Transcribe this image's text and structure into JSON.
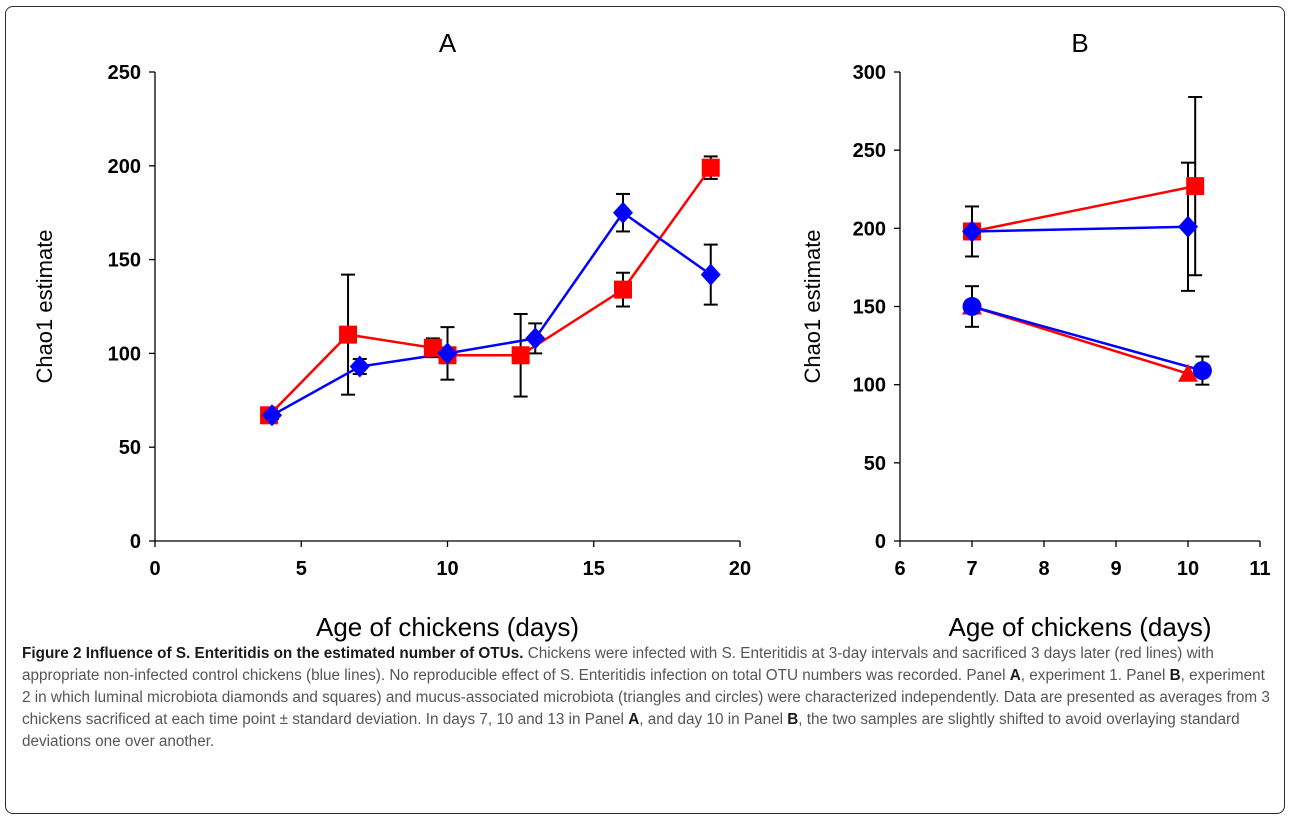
{
  "chart_data": [
    {
      "type": "line",
      "title": "A",
      "xlabel": "Age of chickens (days)",
      "ylabel": "Chao1 estimate",
      "xlim": [
        0,
        20
      ],
      "ylim": [
        0,
        250
      ],
      "xticks": [
        0,
        5,
        10,
        15,
        20
      ],
      "yticks": [
        0,
        50,
        100,
        150,
        200,
        250
      ],
      "grid": false,
      "series": [
        {
          "color": "#ff0000",
          "marker": "square",
          "points": [
            {
              "x": 3.9,
              "y": 67,
              "err": 2
            },
            {
              "x": 6.6,
              "y": 110,
              "err": 32
            },
            {
              "x": 9.5,
              "y": 103,
              "err": 5
            },
            {
              "x": 10.0,
              "y": 99,
              "err": 0
            },
            {
              "x": 12.5,
              "y": 99,
              "err": 22
            },
            {
              "x": 16.0,
              "y": 134,
              "err": 9
            },
            {
              "x": 19.0,
              "y": 199,
              "err": 6
            }
          ]
        },
        {
          "color": "#0000ff",
          "marker": "diamond",
          "points": [
            {
              "x": 4.0,
              "y": 67,
              "err": 2
            },
            {
              "x": 7.0,
              "y": 93,
              "err": 4
            },
            {
              "x": 10.0,
              "y": 100,
              "err": 14
            },
            {
              "x": 13.0,
              "y": 108,
              "err": 8
            },
            {
              "x": 16.0,
              "y": 175,
              "err": 10
            },
            {
              "x": 19.0,
              "y": 142,
              "err": 16
            }
          ]
        }
      ]
    },
    {
      "type": "line",
      "title": "B",
      "xlabel": "Age of chickens (days)",
      "ylabel": "Chao1 estimate",
      "xlim": [
        6,
        11
      ],
      "ylim": [
        0,
        300
      ],
      "xticks": [
        6,
        7,
        8,
        9,
        10,
        11
      ],
      "yticks": [
        0,
        50,
        100,
        150,
        200,
        250,
        300
      ],
      "grid": false,
      "series": [
        {
          "color": "#ff0000",
          "marker": "square",
          "points": [
            {
              "x": 7.0,
              "y": 198,
              "err": 16
            },
            {
              "x": 10.1,
              "y": 227,
              "err": 57
            }
          ]
        },
        {
          "color": "#0000ff",
          "marker": "diamond",
          "points": [
            {
              "x": 7.0,
              "y": 198,
              "err": 0
            },
            {
              "x": 10.0,
              "y": 201,
              "err": 41
            }
          ]
        },
        {
          "color": "#ff0000",
          "marker": "triangle",
          "points": [
            {
              "x": 7.0,
              "y": 150,
              "err": 0
            },
            {
              "x": 10.0,
              "y": 107,
              "err": 0
            }
          ]
        },
        {
          "color": "#0000ff",
          "marker": "circle",
          "points": [
            {
              "x": 7.0,
              "y": 150,
              "err": 13
            },
            {
              "x": 10.2,
              "y": 109,
              "err": 9
            }
          ]
        }
      ]
    }
  ],
  "caption": {
    "title": "Figure 2 Influence of S. Enteritidis on the estimated number of OTUs.",
    "body": [
      {
        "t": " Chickens were infected with S. Enteritidis at 3-day intervals and sacrificed 3 days later (red lines) with appropriate non-infected control chickens (blue lines). No reproducible effect of S. Enteritidis infection on total OTU numbers was recorded. Panel ",
        "b": false
      },
      {
        "t": "A",
        "b": true
      },
      {
        "t": ", experiment 1. Panel ",
        "b": false
      },
      {
        "t": "B",
        "b": true
      },
      {
        "t": ", experiment 2 in which luminal microbiota diamonds and squares) and mucus-associated microbiota (triangles and circles) were characterized independently. Data are presented as averages from 3 chickens sacrificed at each time point ± standard deviation. In days 7, 10 and 13 in Panel ",
        "b": false
      },
      {
        "t": "A",
        "b": true
      },
      {
        "t": ", and day 10 in Panel ",
        "b": false
      },
      {
        "t": "B",
        "b": true
      },
      {
        "t": ", the two samples are slightly shifted to avoid overlaying standard deviations one over another.",
        "b": false
      }
    ]
  }
}
